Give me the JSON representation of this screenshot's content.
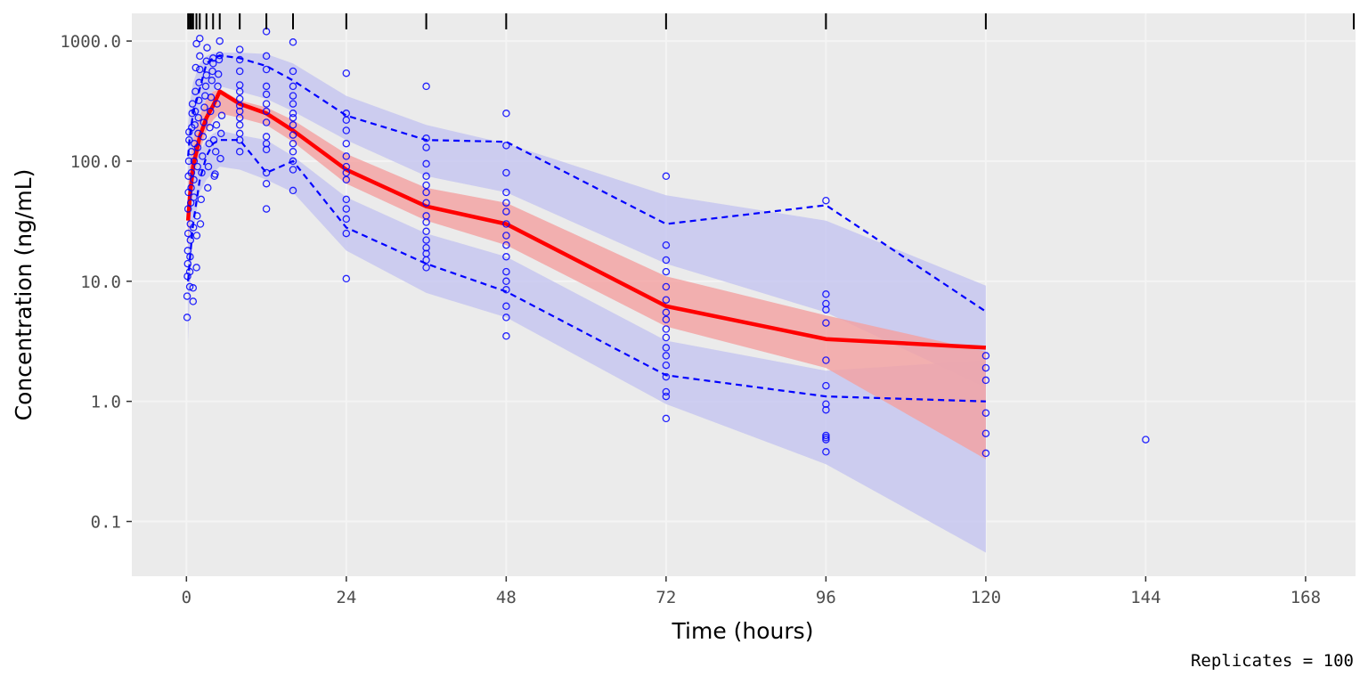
{
  "chart_data": {
    "type": "scatter",
    "title": "",
    "xlabel": "Time (hours)",
    "ylabel": "Concentration (ng/mL)",
    "caption": "Replicates = 100",
    "x_ticks": [
      0,
      24,
      48,
      72,
      96,
      120,
      144,
      168
    ],
    "x_tick_labels": [
      "0",
      "24",
      "48",
      "72",
      "96",
      "120",
      "144",
      "168"
    ],
    "xlim": [
      -8.2,
      175.5
    ],
    "y_scale": "log10",
    "y_ticks": [
      0.1,
      1,
      10,
      100,
      1000
    ],
    "y_tick_labels": [
      "0.1",
      "1.0",
      "10.0",
      "100.0",
      "1000.0"
    ],
    "ylim": [
      0.035,
      1700
    ],
    "grid": true,
    "rug_times": [
      0.25,
      0.5,
      0.75,
      1,
      1.5,
      2,
      3,
      4,
      5,
      8,
      12,
      16,
      24,
      36,
      48,
      72,
      96,
      120,
      176
    ],
    "colors": {
      "panel": "#ebebeb",
      "grid": "#f4f4f4",
      "points": "#0000ff",
      "median_line": "#ff0000",
      "median_band": "#f4a0a0",
      "pi_band": "#c7c7f0",
      "pi_line": "#0000ff",
      "rug": "#000000"
    },
    "series": [
      {
        "role": "observed_median",
        "x": [
          0.25,
          0.5,
          1,
          2,
          3,
          4,
          5,
          8,
          12,
          16,
          24,
          36,
          48,
          72,
          96,
          120
        ],
        "y": [
          32,
          50,
          90,
          160,
          230,
          290,
          380,
          300,
          250,
          180,
          85,
          42,
          30,
          6.2,
          3.3,
          2.8
        ]
      },
      {
        "role": "observed_upper_percentile",
        "x": [
          0.25,
          0.5,
          1,
          2,
          3,
          4,
          5,
          8,
          12,
          16,
          24,
          36,
          48,
          72,
          96,
          120
        ],
        "y": [
          110,
          160,
          250,
          400,
          650,
          720,
          760,
          720,
          620,
          470,
          240,
          150,
          145,
          30,
          43,
          5.6
        ]
      },
      {
        "role": "observed_lower_percentile",
        "x": [
          0.25,
          0.5,
          1,
          2,
          3,
          4,
          5,
          8,
          12,
          16,
          24,
          36,
          48,
          72,
          96,
          120
        ],
        "y": [
          10,
          15,
          30,
          70,
          110,
          140,
          150,
          150,
          80,
          100,
          28,
          14,
          8.2,
          1.65,
          1.1,
          1.0
        ]
      },
      {
        "role": "simulated_median_interval",
        "x": [
          0.25,
          0.5,
          1,
          2,
          3,
          4,
          5,
          8,
          12,
          16,
          24,
          36,
          48,
          72,
          96,
          120
        ],
        "upper": [
          60,
          90,
          150,
          240,
          330,
          380,
          400,
          320,
          280,
          220,
          115,
          60,
          45,
          11,
          5.2,
          2.6
        ],
        "lower": [
          18,
          35,
          70,
          120,
          180,
          220,
          250,
          230,
          200,
          145,
          65,
          32,
          20,
          4.2,
          1.9,
          0.33
        ]
      },
      {
        "role": "simulated_upper_interval",
        "x": [
          0.25,
          0.5,
          1,
          2,
          3,
          4,
          5,
          8,
          12,
          16,
          24,
          36,
          48,
          72,
          96,
          120
        ],
        "upper": [
          200,
          300,
          450,
          650,
          750,
          800,
          800,
          800,
          780,
          650,
          350,
          200,
          140,
          52,
          32,
          9.2
        ],
        "lower": [
          60,
          90,
          150,
          250,
          330,
          380,
          420,
          380,
          330,
          260,
          150,
          75,
          55,
          14,
          5.5,
          1.3
        ]
      },
      {
        "role": "simulated_lower_interval",
        "x": [
          0.25,
          0.5,
          1,
          2,
          3,
          4,
          5,
          8,
          12,
          16,
          24,
          36,
          48,
          72,
          96,
          120
        ],
        "upper": [
          35,
          50,
          80,
          120,
          150,
          170,
          180,
          165,
          150,
          110,
          50,
          25,
          16,
          3.2,
          1.8,
          2.2
        ],
        "lower": [
          3,
          8,
          25,
          55,
          70,
          80,
          90,
          85,
          70,
          55,
          18,
          8,
          5,
          0.95,
          0.3,
          0.055
        ]
      },
      {
        "role": "observed_points",
        "points": [
          [
            0.1,
            5
          ],
          [
            0.1,
            7.5
          ],
          [
            0.15,
            11
          ],
          [
            0.2,
            14
          ],
          [
            0.2,
            18
          ],
          [
            0.25,
            25
          ],
          [
            0.25,
            40
          ],
          [
            0.3,
            55
          ],
          [
            0.3,
            75
          ],
          [
            0.35,
            100
          ],
          [
            0.4,
            150
          ],
          [
            0.4,
            175
          ],
          [
            0.5,
            9
          ],
          [
            0.5,
            12
          ],
          [
            0.55,
            16
          ],
          [
            0.6,
            22
          ],
          [
            0.6,
            30
          ],
          [
            0.65,
            45
          ],
          [
            0.7,
            60
          ],
          [
            0.75,
            80
          ],
          [
            0.75,
            120
          ],
          [
            0.8,
            190
          ],
          [
            0.85,
            250
          ],
          [
            0.9,
            300
          ],
          [
            1,
            6.8
          ],
          [
            1,
            8.8
          ],
          [
            1.05,
            28
          ],
          [
            1.1,
            50
          ],
          [
            1.1,
            70
          ],
          [
            1.15,
            100
          ],
          [
            1.2,
            140
          ],
          [
            1.25,
            200
          ],
          [
            1.3,
            260
          ],
          [
            1.35,
            380
          ],
          [
            1.4,
            600
          ],
          [
            1.5,
            950
          ],
          [
            1.5,
            13
          ],
          [
            1.55,
            24
          ],
          [
            1.6,
            35
          ],
          [
            1.65,
            90
          ],
          [
            1.7,
            130
          ],
          [
            1.75,
            170
          ],
          [
            1.8,
            230
          ],
          [
            1.85,
            320
          ],
          [
            1.9,
            450
          ],
          [
            2,
            580
          ],
          [
            2,
            750
          ],
          [
            2,
            1050
          ],
          [
            2.1,
            30
          ],
          [
            2.2,
            48
          ],
          [
            2.3,
            80
          ],
          [
            2.4,
            110
          ],
          [
            2.5,
            160
          ],
          [
            2.6,
            210
          ],
          [
            2.7,
            280
          ],
          [
            2.8,
            350
          ],
          [
            2.9,
            420
          ],
          [
            3,
            520
          ],
          [
            3,
            680
          ],
          [
            3.1,
            880
          ],
          [
            3.2,
            60
          ],
          [
            3.3,
            90
          ],
          [
            3.4,
            140
          ],
          [
            3.5,
            190
          ],
          [
            3.6,
            260
          ],
          [
            3.7,
            340
          ],
          [
            3.8,
            470
          ],
          [
            3.9,
            560
          ],
          [
            4,
            650
          ],
          [
            4,
            720
          ],
          [
            4.1,
            150
          ],
          [
            4.2,
            75
          ],
          [
            4.3,
            78
          ],
          [
            4.4,
            120
          ],
          [
            4.5,
            200
          ],
          [
            4.6,
            300
          ],
          [
            4.7,
            420
          ],
          [
            4.8,
            530
          ],
          [
            4.9,
            700
          ],
          [
            5,
            760
          ],
          [
            5,
            1000
          ],
          [
            5.1,
            105
          ],
          [
            5.2,
            170
          ],
          [
            5.3,
            240
          ],
          [
            8,
            120
          ],
          [
            8,
            150
          ],
          [
            8,
            170
          ],
          [
            8,
            200
          ],
          [
            8,
            230
          ],
          [
            8,
            260
          ],
          [
            8,
            290
          ],
          [
            8,
            330
          ],
          [
            8,
            380
          ],
          [
            8,
            430
          ],
          [
            8,
            560
          ],
          [
            8,
            700
          ],
          [
            8,
            850
          ],
          [
            12,
            40
          ],
          [
            12,
            65
          ],
          [
            12,
            80
          ],
          [
            12,
            125
          ],
          [
            12,
            140
          ],
          [
            12,
            160
          ],
          [
            12,
            210
          ],
          [
            12,
            260
          ],
          [
            12,
            300
          ],
          [
            12,
            360
          ],
          [
            12,
            420
          ],
          [
            12,
            580
          ],
          [
            12,
            750
          ],
          [
            12,
            1200
          ],
          [
            16,
            57
          ],
          [
            16,
            85
          ],
          [
            16,
            100
          ],
          [
            16,
            120
          ],
          [
            16,
            140
          ],
          [
            16,
            165
          ],
          [
            16,
            200
          ],
          [
            16,
            230
          ],
          [
            16,
            250
          ],
          [
            16,
            300
          ],
          [
            16,
            350
          ],
          [
            16,
            420
          ],
          [
            16,
            560
          ],
          [
            16,
            980
          ],
          [
            24,
            10.5
          ],
          [
            24,
            25
          ],
          [
            24,
            33
          ],
          [
            24,
            40
          ],
          [
            24,
            48
          ],
          [
            24,
            70
          ],
          [
            24,
            80
          ],
          [
            24,
            90
          ],
          [
            24,
            110
          ],
          [
            24,
            140
          ],
          [
            24,
            180
          ],
          [
            24,
            220
          ],
          [
            24,
            250
          ],
          [
            24,
            540
          ],
          [
            36,
            13
          ],
          [
            36,
            15
          ],
          [
            36,
            17
          ],
          [
            36,
            19
          ],
          [
            36,
            22
          ],
          [
            36,
            26
          ],
          [
            36,
            31
          ],
          [
            36,
            35
          ],
          [
            36,
            45
          ],
          [
            36,
            55
          ],
          [
            36,
            63
          ],
          [
            36,
            75
          ],
          [
            36,
            95
          ],
          [
            36,
            130
          ],
          [
            36,
            155
          ],
          [
            36,
            420
          ],
          [
            48,
            3.5
          ],
          [
            48,
            5
          ],
          [
            48,
            6.2
          ],
          [
            48,
            8.5
          ],
          [
            48,
            10
          ],
          [
            48,
            12
          ],
          [
            48,
            16
          ],
          [
            48,
            20
          ],
          [
            48,
            24
          ],
          [
            48,
            30
          ],
          [
            48,
            38
          ],
          [
            48,
            45
          ],
          [
            48,
            55
          ],
          [
            48,
            80
          ],
          [
            48,
            135
          ],
          [
            48,
            250
          ],
          [
            72,
            0.72
          ],
          [
            72,
            1.1
          ],
          [
            72,
            1.2
          ],
          [
            72,
            1.6
          ],
          [
            72,
            2
          ],
          [
            72,
            2.4
          ],
          [
            72,
            2.8
          ],
          [
            72,
            3.4
          ],
          [
            72,
            4
          ],
          [
            72,
            4.8
          ],
          [
            72,
            5.5
          ],
          [
            72,
            7
          ],
          [
            72,
            9
          ],
          [
            72,
            12
          ],
          [
            72,
            15
          ],
          [
            72,
            20
          ],
          [
            72,
            75
          ],
          [
            96,
            0.38
          ],
          [
            96,
            0.48
          ],
          [
            96,
            0.5
          ],
          [
            96,
            0.52
          ],
          [
            96,
            0.85
          ],
          [
            96,
            0.95
          ],
          [
            96,
            1.35
          ],
          [
            96,
            2.2
          ],
          [
            96,
            4.5
          ],
          [
            96,
            5.8
          ],
          [
            96,
            6.5
          ],
          [
            96,
            7.8
          ],
          [
            96,
            47
          ],
          [
            120,
            0.37
          ],
          [
            120,
            0.54
          ],
          [
            120,
            0.8
          ],
          [
            120,
            1.5
          ],
          [
            120,
            1.9
          ],
          [
            120,
            2.4
          ],
          [
            144,
            0.48
          ]
        ]
      }
    ]
  }
}
